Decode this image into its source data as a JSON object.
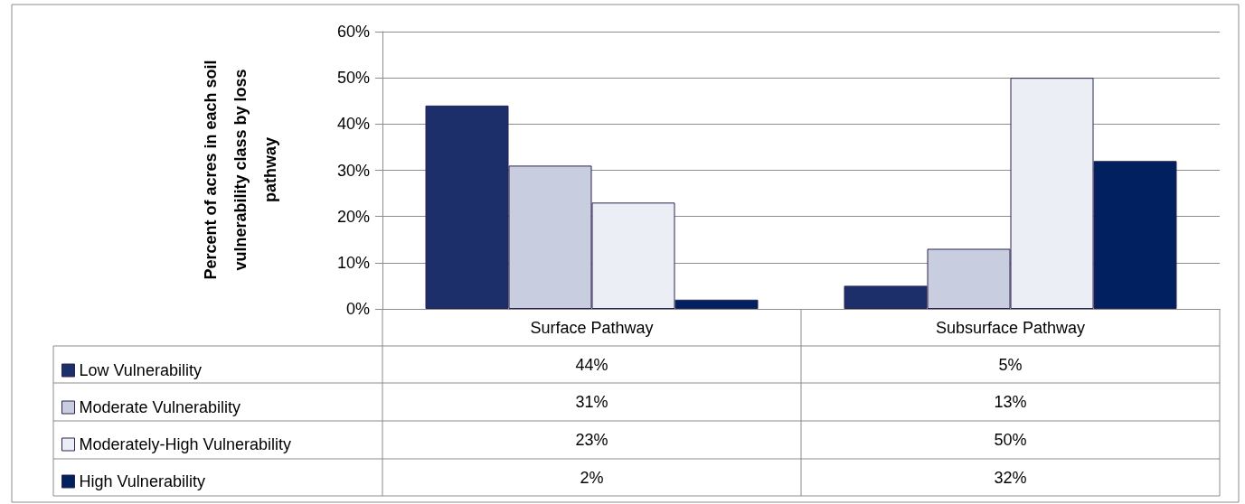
{
  "chart_data": {
    "type": "bar",
    "ylabel": "Percent of acres in each soil vulnerability class by loss pathway",
    "categories": [
      "Surface Pathway",
      "Subsurface Pathway"
    ],
    "series": [
      {
        "name": "Low Vulnerability",
        "color": "#1c2f6b",
        "values": [
          44,
          5
        ],
        "value_labels": [
          "44%",
          "5%"
        ]
      },
      {
        "name": "Moderate Vulnerability",
        "color": "#c9cde0",
        "values": [
          31,
          13
        ],
        "value_labels": [
          "31%",
          "13%"
        ]
      },
      {
        "name": "Moderately-High Vulnerability",
        "color": "#eceef5",
        "values": [
          23,
          50
        ],
        "value_labels": [
          "23%",
          "50%"
        ]
      },
      {
        "name": "High Vulnerability",
        "color": "#002060",
        "values": [
          2,
          32
        ],
        "value_labels": [
          "2%",
          "32%"
        ]
      }
    ],
    "ylim": [
      0,
      60
    ],
    "yticks": [
      {
        "value": 0,
        "label": "0%"
      },
      {
        "value": 10,
        "label": "10%"
      },
      {
        "value": 20,
        "label": "20%"
      },
      {
        "value": 30,
        "label": "30%"
      },
      {
        "value": 40,
        "label": "40%"
      },
      {
        "value": 50,
        "label": "50%"
      },
      {
        "value": 60,
        "label": "60%"
      }
    ],
    "grid": "y",
    "legend": "bottom left"
  }
}
